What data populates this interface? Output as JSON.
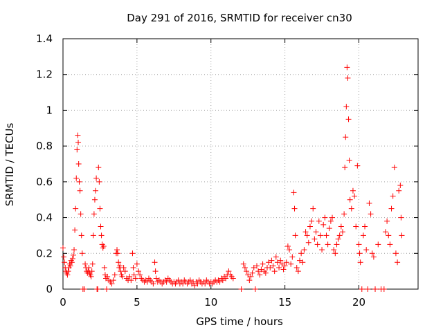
{
  "chart_data": {
    "type": "scatter",
    "title": "Day 291 of 2016, SRMTID for receiver cn30",
    "xlabel": "GPS time / hours",
    "ylabel": "SRMTID / TECUs",
    "xlim": [
      0,
      24
    ],
    "ylim": [
      0,
      1.4
    ],
    "xticks": [
      0,
      5,
      10,
      15,
      20
    ],
    "xtick_labels": [
      "0",
      "5",
      "10",
      "15",
      "20"
    ],
    "yticks": [
      0,
      0.2,
      0.4,
      0.6,
      0.8,
      1,
      1.2,
      1.4
    ],
    "ytick_labels": [
      "0",
      "0.2",
      "0.4",
      "0.6",
      "0.8",
      "1",
      "1.2",
      "1.4"
    ],
    "grid": true,
    "marker": "+",
    "series": [
      {
        "name": "SRMTID",
        "color": "#ff0000",
        "points": [
          [
            0.0,
            0.23
          ],
          [
            0.05,
            0.18
          ],
          [
            0.1,
            0.15
          ],
          [
            0.15,
            0.12
          ],
          [
            0.2,
            0.1
          ],
          [
            0.25,
            0.09
          ],
          [
            0.3,
            0.08
          ],
          [
            0.35,
            0.1
          ],
          [
            0.4,
            0.12
          ],
          [
            0.45,
            0.14
          ],
          [
            0.5,
            0.13
          ],
          [
            0.55,
            0.16
          ],
          [
            0.6,
            0.15
          ],
          [
            0.65,
            0.17
          ],
          [
            0.7,
            0.19
          ],
          [
            0.75,
            0.22
          ],
          [
            0.8,
            0.33
          ],
          [
            0.85,
            0.45
          ],
          [
            0.9,
            0.62
          ],
          [
            0.95,
            0.78
          ],
          [
            1.0,
            0.86
          ],
          [
            1.03,
            0.82
          ],
          [
            1.06,
            0.7
          ],
          [
            1.1,
            0.6
          ],
          [
            1.15,
            0.55
          ],
          [
            1.2,
            0.42
          ],
          [
            1.25,
            0.3
          ],
          [
            1.3,
            0.2
          ],
          [
            1.35,
            0.0
          ],
          [
            1.45,
            0.0
          ],
          [
            1.5,
            0.14
          ],
          [
            1.55,
            0.12
          ],
          [
            1.6,
            0.1
          ],
          [
            1.65,
            0.09
          ],
          [
            1.7,
            0.1
          ],
          [
            1.75,
            0.12
          ],
          [
            1.8,
            0.09
          ],
          [
            1.85,
            0.08
          ],
          [
            1.9,
            0.07
          ],
          [
            1.95,
            0.1
          ],
          [
            2.0,
            0.14
          ],
          [
            2.05,
            0.3
          ],
          [
            2.1,
            0.42
          ],
          [
            2.15,
            0.5
          ],
          [
            2.2,
            0.55
          ],
          [
            2.25,
            0.62
          ],
          [
            2.3,
            0.0
          ],
          [
            2.35,
            0.0
          ],
          [
            2.4,
            0.68
          ],
          [
            2.45,
            0.6
          ],
          [
            2.5,
            0.45
          ],
          [
            2.55,
            0.35
          ],
          [
            2.6,
            0.3
          ],
          [
            2.65,
            0.25
          ],
          [
            2.7,
            0.23
          ],
          [
            2.75,
            0.24
          ],
          [
            2.8,
            0.12
          ],
          [
            2.85,
            0.08
          ],
          [
            2.9,
            0.06
          ],
          [
            2.95,
            0.0
          ],
          [
            3.0,
            0.07
          ],
          [
            3.1,
            0.05
          ],
          [
            3.2,
            0.04
          ],
          [
            3.3,
            0.03
          ],
          [
            3.4,
            0.05
          ],
          [
            3.5,
            0.08
          ],
          [
            3.6,
            0.2
          ],
          [
            3.65,
            0.22
          ],
          [
            3.7,
            0.2
          ],
          [
            3.75,
            0.15
          ],
          [
            3.8,
            0.12
          ],
          [
            3.85,
            0.13
          ],
          [
            3.9,
            0.1
          ],
          [
            3.95,
            0.08
          ],
          [
            4.0,
            0.07
          ],
          [
            4.1,
            0.12
          ],
          [
            4.2,
            0.1
          ],
          [
            4.3,
            0.06
          ],
          [
            4.4,
            0.05
          ],
          [
            4.5,
            0.07
          ],
          [
            4.6,
            0.05
          ],
          [
            4.7,
            0.2
          ],
          [
            4.75,
            0.12
          ],
          [
            4.8,
            0.08
          ],
          [
            4.9,
            0.06
          ],
          [
            5.0,
            0.14
          ],
          [
            5.1,
            0.1
          ],
          [
            5.2,
            0.08
          ],
          [
            5.3,
            0.06
          ],
          [
            5.4,
            0.05
          ],
          [
            5.5,
            0.04
          ],
          [
            5.6,
            0.05
          ],
          [
            5.7,
            0.04
          ],
          [
            5.8,
            0.06
          ],
          [
            5.9,
            0.05
          ],
          [
            6.0,
            0.04
          ],
          [
            6.1,
            0.03
          ],
          [
            6.2,
            0.15
          ],
          [
            6.25,
            0.1
          ],
          [
            6.3,
            0.06
          ],
          [
            6.4,
            0.04
          ],
          [
            6.5,
            0.05
          ],
          [
            6.6,
            0.04
          ],
          [
            6.7,
            0.03
          ],
          [
            6.8,
            0.04
          ],
          [
            6.9,
            0.05
          ],
          [
            7.0,
            0.04
          ],
          [
            7.1,
            0.06
          ],
          [
            7.2,
            0.05
          ],
          [
            7.3,
            0.04
          ],
          [
            7.4,
            0.03
          ],
          [
            7.5,
            0.04
          ],
          [
            7.6,
            0.03
          ],
          [
            7.7,
            0.04
          ],
          [
            7.8,
            0.05
          ],
          [
            7.9,
            0.03
          ],
          [
            8.0,
            0.04
          ],
          [
            8.1,
            0.03
          ],
          [
            8.2,
            0.05
          ],
          [
            8.3,
            0.04
          ],
          [
            8.4,
            0.03
          ],
          [
            8.5,
            0.04
          ],
          [
            8.6,
            0.05
          ],
          [
            8.7,
            0.03
          ],
          [
            8.8,
            0.04
          ],
          [
            8.9,
            0.02
          ],
          [
            9.0,
            0.04
          ],
          [
            9.1,
            0.03
          ],
          [
            9.2,
            0.05
          ],
          [
            9.3,
            0.04
          ],
          [
            9.4,
            0.03
          ],
          [
            9.5,
            0.04
          ],
          [
            9.6,
            0.03
          ],
          [
            9.7,
            0.05
          ],
          [
            9.8,
            0.04
          ],
          [
            9.9,
            0.03
          ],
          [
            10.0,
            0.04
          ],
          [
            10.1,
            0.03
          ],
          [
            10.2,
            0.04
          ],
          [
            10.3,
            0.05
          ],
          [
            10.4,
            0.04
          ],
          [
            10.5,
            0.05
          ],
          [
            10.6,
            0.04
          ],
          [
            10.7,
            0.06
          ],
          [
            10.8,
            0.05
          ],
          [
            10.9,
            0.07
          ],
          [
            11.0,
            0.06
          ],
          [
            11.1,
            0.08
          ],
          [
            11.2,
            0.1
          ],
          [
            11.3,
            0.08
          ],
          [
            11.4,
            0.07
          ],
          [
            11.5,
            0.06
          ],
          [
            12.05,
            0.0
          ],
          [
            12.2,
            0.14
          ],
          [
            12.3,
            0.12
          ],
          [
            12.4,
            0.1
          ],
          [
            12.5,
            0.08
          ],
          [
            12.6,
            0.05
          ],
          [
            12.7,
            0.07
          ],
          [
            12.8,
            0.09
          ],
          [
            12.9,
            0.12
          ],
          [
            13.0,
            0.0
          ],
          [
            13.1,
            0.13
          ],
          [
            13.2,
            0.1
          ],
          [
            13.3,
            0.08
          ],
          [
            13.4,
            0.11
          ],
          [
            13.5,
            0.14
          ],
          [
            13.6,
            0.1
          ],
          [
            13.7,
            0.09
          ],
          [
            13.8,
            0.12
          ],
          [
            13.9,
            0.15
          ],
          [
            14.0,
            0.12
          ],
          [
            14.1,
            0.16
          ],
          [
            14.2,
            0.13
          ],
          [
            14.3,
            0.1
          ],
          [
            14.4,
            0.18
          ],
          [
            14.5,
            0.15
          ],
          [
            14.6,
            0.12
          ],
          [
            14.7,
            0.16
          ],
          [
            14.8,
            0.14
          ],
          [
            14.9,
            0.11
          ],
          [
            15.0,
            0.13
          ],
          [
            15.1,
            0.15
          ],
          [
            15.2,
            0.24
          ],
          [
            15.3,
            0.22
          ],
          [
            15.4,
            0.14
          ],
          [
            15.5,
            0.18
          ],
          [
            15.6,
            0.54
          ],
          [
            15.65,
            0.45
          ],
          [
            15.7,
            0.3
          ],
          [
            15.8,
            0.12
          ],
          [
            15.9,
            0.1
          ],
          [
            16.0,
            0.16
          ],
          [
            16.1,
            0.2
          ],
          [
            16.2,
            0.15
          ],
          [
            16.3,
            0.22
          ],
          [
            16.4,
            0.32
          ],
          [
            16.5,
            0.3
          ],
          [
            16.6,
            0.26
          ],
          [
            16.7,
            0.35
          ],
          [
            16.8,
            0.38
          ],
          [
            16.9,
            0.45
          ],
          [
            17.0,
            0.28
          ],
          [
            17.1,
            0.32
          ],
          [
            17.2,
            0.25
          ],
          [
            17.3,
            0.38
          ],
          [
            17.4,
            0.3
          ],
          [
            17.5,
            0.22
          ],
          [
            17.6,
            0.36
          ],
          [
            17.7,
            0.4
          ],
          [
            17.8,
            0.3
          ],
          [
            17.9,
            0.25
          ],
          [
            18.0,
            0.34
          ],
          [
            18.1,
            0.38
          ],
          [
            18.2,
            0.4
          ],
          [
            18.3,
            0.22
          ],
          [
            18.4,
            0.2
          ],
          [
            18.5,
            0.25
          ],
          [
            18.6,
            0.28
          ],
          [
            18.7,
            0.3
          ],
          [
            18.8,
            0.35
          ],
          [
            18.9,
            0.32
          ],
          [
            19.0,
            0.42
          ],
          [
            19.05,
            0.68
          ],
          [
            19.1,
            0.85
          ],
          [
            19.15,
            1.02
          ],
          [
            19.2,
            1.24
          ],
          [
            19.25,
            1.18
          ],
          [
            19.3,
            0.95
          ],
          [
            19.35,
            0.72
          ],
          [
            19.4,
            0.5
          ],
          [
            19.5,
            0.45
          ],
          [
            19.6,
            0.55
          ],
          [
            19.7,
            0.52
          ],
          [
            19.8,
            0.35
          ],
          [
            19.9,
            0.69
          ],
          [
            20.0,
            0.25
          ],
          [
            20.05,
            0.2
          ],
          [
            20.1,
            0.15
          ],
          [
            20.2,
            0.0
          ],
          [
            20.3,
            0.3
          ],
          [
            20.4,
            0.35
          ],
          [
            20.5,
            0.22
          ],
          [
            20.6,
            0.0
          ],
          [
            20.7,
            0.48
          ],
          [
            20.8,
            0.42
          ],
          [
            20.9,
            0.2
          ],
          [
            21.0,
            0.18
          ],
          [
            21.1,
            0.0
          ],
          [
            21.3,
            0.25
          ],
          [
            21.5,
            0.0
          ],
          [
            21.7,
            0.0
          ],
          [
            21.8,
            0.32
          ],
          [
            21.9,
            0.38
          ],
          [
            22.0,
            0.3
          ],
          [
            22.1,
            0.25
          ],
          [
            22.2,
            0.45
          ],
          [
            22.3,
            0.52
          ],
          [
            22.4,
            0.68
          ],
          [
            22.5,
            0.2
          ],
          [
            22.6,
            0.15
          ],
          [
            22.7,
            0.55
          ],
          [
            22.8,
            0.58
          ],
          [
            22.85,
            0.4
          ],
          [
            22.9,
            0.3
          ]
        ]
      }
    ]
  }
}
